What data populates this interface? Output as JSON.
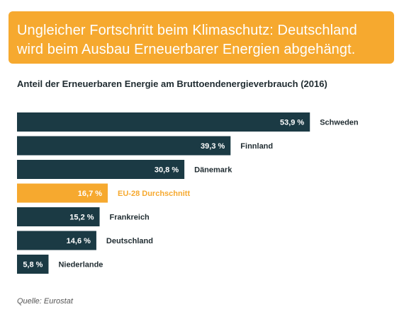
{
  "header": {
    "title_line1": "Ungleicher Fortschritt beim Klimaschutz: Deutschland",
    "title_line2": "wird beim Ausbau Erneuerbarer Energien abgehängt."
  },
  "chart_data": {
    "type": "bar",
    "orientation": "horizontal",
    "title": "Anteil der Erneuerbaren Energie am Bruttoendenergieverbrauch (2016)",
    "categories": [
      "Schweden",
      "Finnland",
      "Dänemark",
      "EU-28 Durchschnitt",
      "Frankreich",
      "Deutschland",
      "Niederlande"
    ],
    "values": [
      53.9,
      39.3,
      30.8,
      16.7,
      15.2,
      14.6,
      5.8
    ],
    "value_labels": [
      "53,9 %",
      "39,3 %",
      "30,8 %",
      "16,7 %",
      "15,2 %",
      "14,6 %",
      "5,8 %"
    ],
    "highlight_category": "EU-28 Durchschnitt",
    "unit": "%",
    "xlim": [
      0,
      54
    ],
    "grid": false,
    "legend": "none",
    "colors": {
      "bar": "#1b3a44",
      "highlight": "#f6a92f",
      "value_text": "#ffffff",
      "label_text": "#1f2b30"
    }
  },
  "footer": {
    "source": "Quelle: Eurostat"
  }
}
